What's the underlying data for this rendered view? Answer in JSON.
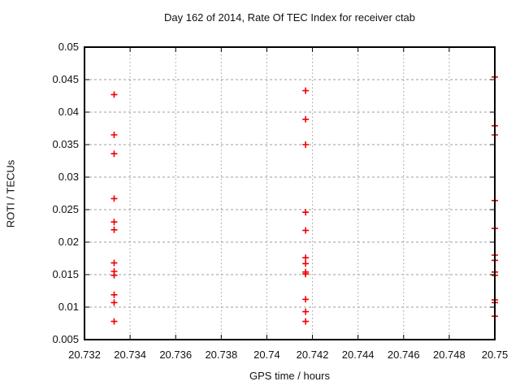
{
  "chart_data": {
    "type": "scatter",
    "title": "Day 162 of 2014, Rate Of TEC Index for receiver ctab",
    "xlabel": "GPS time / hours",
    "ylabel": "ROTI / TECUs",
    "xlim": [
      20.732,
      20.75
    ],
    "ylim": [
      0.005,
      0.05
    ],
    "x_tick_values": [
      20.732,
      20.734,
      20.736,
      20.738,
      20.74,
      20.742,
      20.744,
      20.746,
      20.748,
      20.75
    ],
    "x_tick_labels": [
      "20.732",
      "20.734",
      "20.736",
      "20.738",
      "20.74",
      "20.742",
      "20.744",
      "20.746",
      "20.748",
      "20.75"
    ],
    "y_tick_values": [
      0.005,
      0.01,
      0.015,
      0.02,
      0.025,
      0.03,
      0.035,
      0.04,
      0.045,
      0.05
    ],
    "y_tick_labels": [
      "0.005",
      "0.01",
      "0.015",
      "0.02",
      "0.025",
      "0.03",
      "0.035",
      "0.04",
      "0.045",
      "0.05"
    ],
    "grid": true,
    "legend": "none",
    "marker": "plus",
    "colors": {
      "marker": "#ee0000",
      "border": "#000000",
      "grid": "#9c9c9c",
      "text": "#111111"
    },
    "series": [
      {
        "name": "ROTI",
        "points": [
          [
            20.7333,
            0.0427
          ],
          [
            20.7333,
            0.0365
          ],
          [
            20.7333,
            0.0336
          ],
          [
            20.7333,
            0.0267
          ],
          [
            20.7333,
            0.0231
          ],
          [
            20.7333,
            0.0219
          ],
          [
            20.7333,
            0.0168
          ],
          [
            20.7333,
            0.0155
          ],
          [
            20.7333,
            0.0149
          ],
          [
            20.7333,
            0.0119
          ],
          [
            20.7333,
            0.0107
          ],
          [
            20.7333,
            0.0078
          ],
          [
            20.7417,
            0.0433
          ],
          [
            20.7417,
            0.0389
          ],
          [
            20.7417,
            0.035
          ],
          [
            20.7417,
            0.0246
          ],
          [
            20.7417,
            0.0218
          ],
          [
            20.7417,
            0.0176
          ],
          [
            20.7417,
            0.0167
          ],
          [
            20.7417,
            0.0154
          ],
          [
            20.7417,
            0.0151
          ],
          [
            20.7417,
            0.0112
          ],
          [
            20.7417,
            0.0093
          ],
          [
            20.7417,
            0.0078
          ],
          [
            20.75,
            0.0454
          ],
          [
            20.75,
            0.0379
          ],
          [
            20.75,
            0.0365
          ],
          [
            20.75,
            0.0264
          ],
          [
            20.75,
            0.0221
          ],
          [
            20.75,
            0.018
          ],
          [
            20.75,
            0.0172
          ],
          [
            20.75,
            0.0154
          ],
          [
            20.75,
            0.0149
          ],
          [
            20.75,
            0.0111
          ],
          [
            20.75,
            0.0107
          ],
          [
            20.75,
            0.0086
          ]
        ]
      }
    ]
  }
}
